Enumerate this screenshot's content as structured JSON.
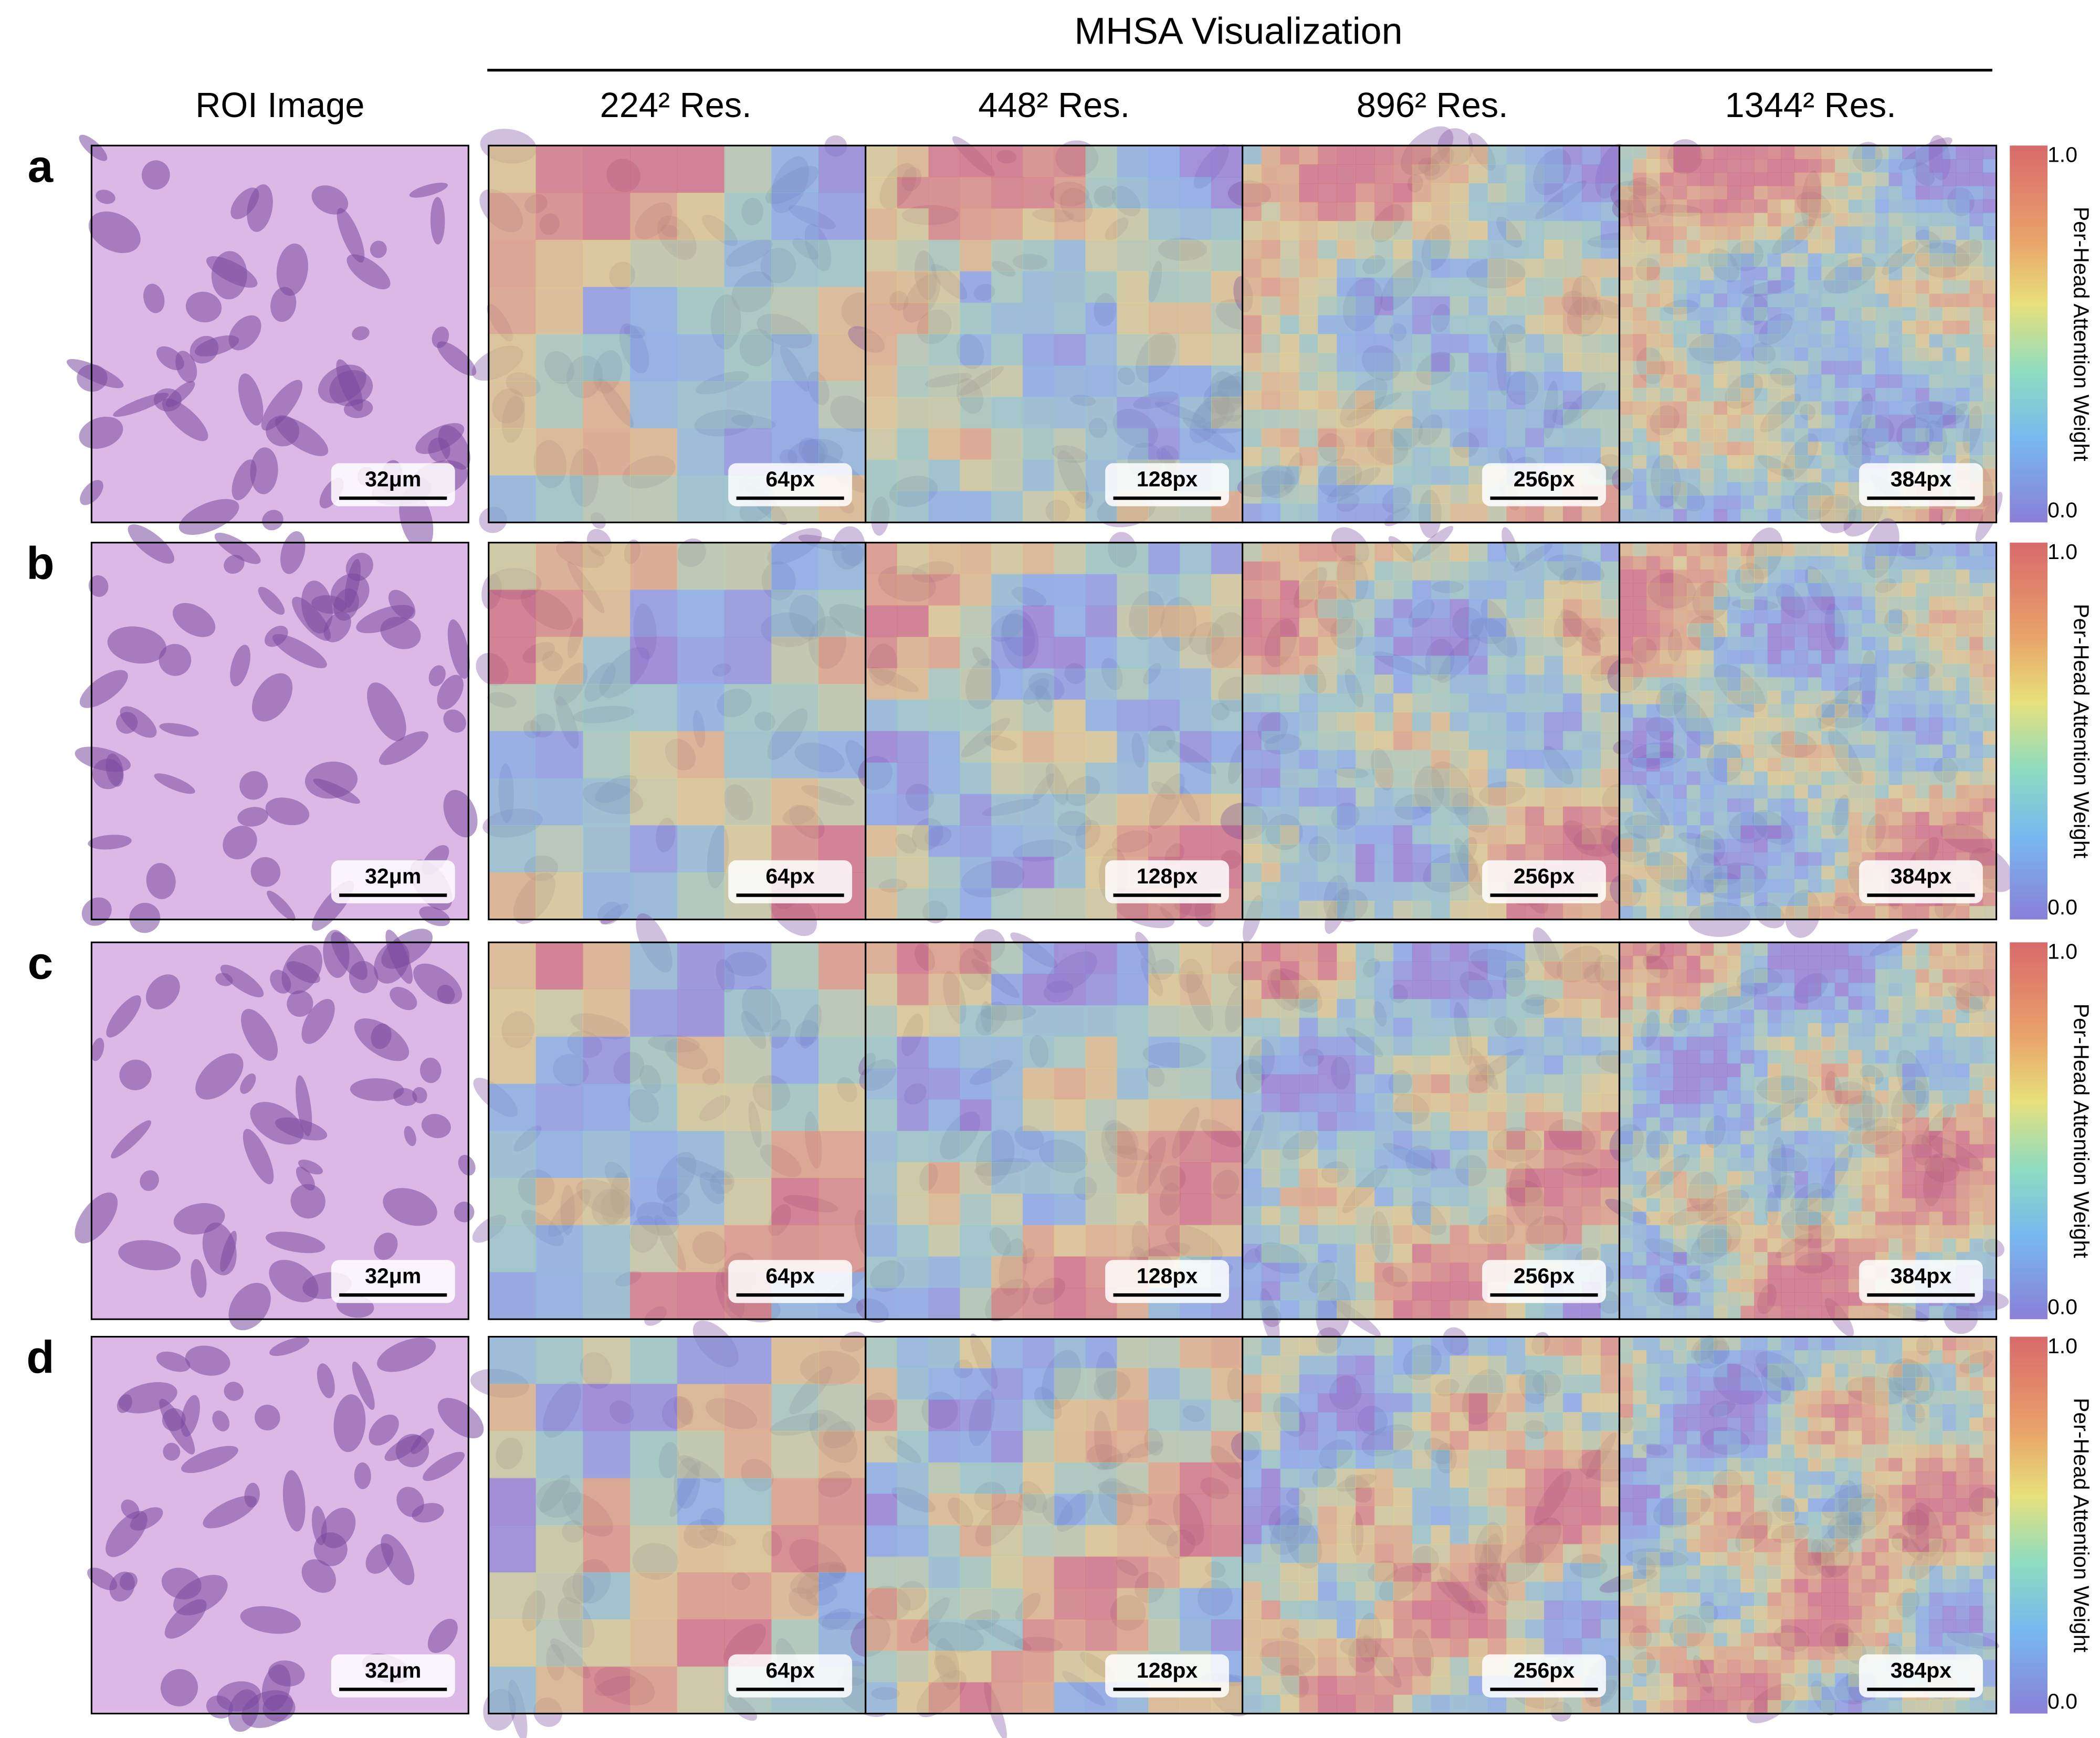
{
  "header": {
    "title": "MHSA Visualization",
    "columns": [
      "ROI Image",
      "224² Res.",
      "448² Res.",
      "896² Res.",
      "1344² Res."
    ]
  },
  "rows": [
    {
      "label": "a"
    },
    {
      "label": "b"
    },
    {
      "label": "c"
    },
    {
      "label": "d"
    }
  ],
  "scale_bars": [
    "32μm",
    "64px",
    "128px",
    "256px",
    "384px"
  ],
  "colorbar": {
    "max": "1.0",
    "min": "0.0",
    "label": "Per-Head Attention Weight"
  }
}
